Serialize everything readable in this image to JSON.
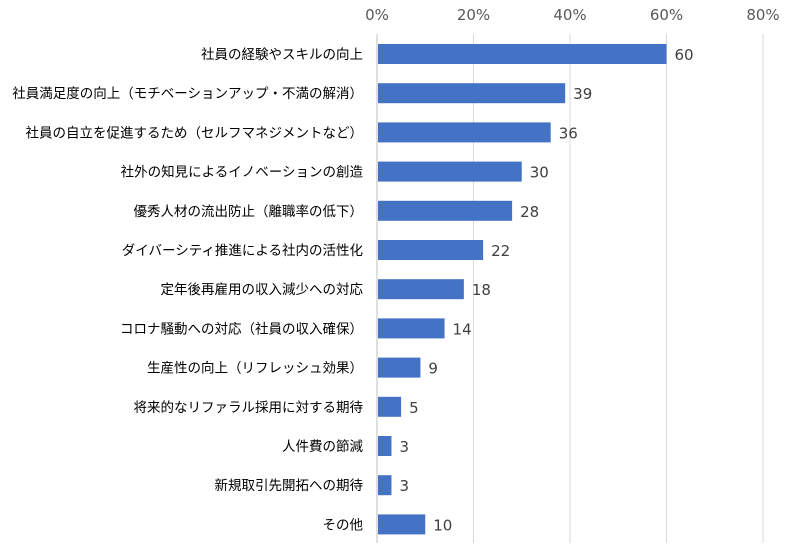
{
  "chart_data": {
    "type": "bar",
    "orientation": "horizontal",
    "title": "",
    "xlabel": "",
    "ylabel": "",
    "xlim": [
      0,
      80
    ],
    "x_ticks": [
      "0%",
      "20%",
      "40%",
      "60%",
      "80%"
    ],
    "x_tick_values": [
      0,
      20,
      40,
      60,
      80
    ],
    "grid": true,
    "legend": "none",
    "bar_color": "#4472C4",
    "categories": [
      "社員の経験やスキルの向上",
      "社員満足度の向上（モチベーションアップ・不満の解消）",
      "社員の自立を促進するため（セルフマネジメントなど）",
      "社外の知見によるイノベーションの創造",
      "優秀人材の流出防止（離職率の低下）",
      "ダイバーシティ推進による社内の活性化",
      "定年後再雇用の収入減少への対応",
      "コロナ騒動への対応（社員の収入確保）",
      "生産性の向上（リフレッシュ効果）",
      "将来的なリファラル採用に対する期待",
      "人件費の節減",
      "新規取引先開拓への期待",
      "その他"
    ],
    "values": [
      60,
      39,
      36,
      30,
      28,
      22,
      18,
      14,
      9,
      5,
      3,
      3,
      10
    ]
  }
}
